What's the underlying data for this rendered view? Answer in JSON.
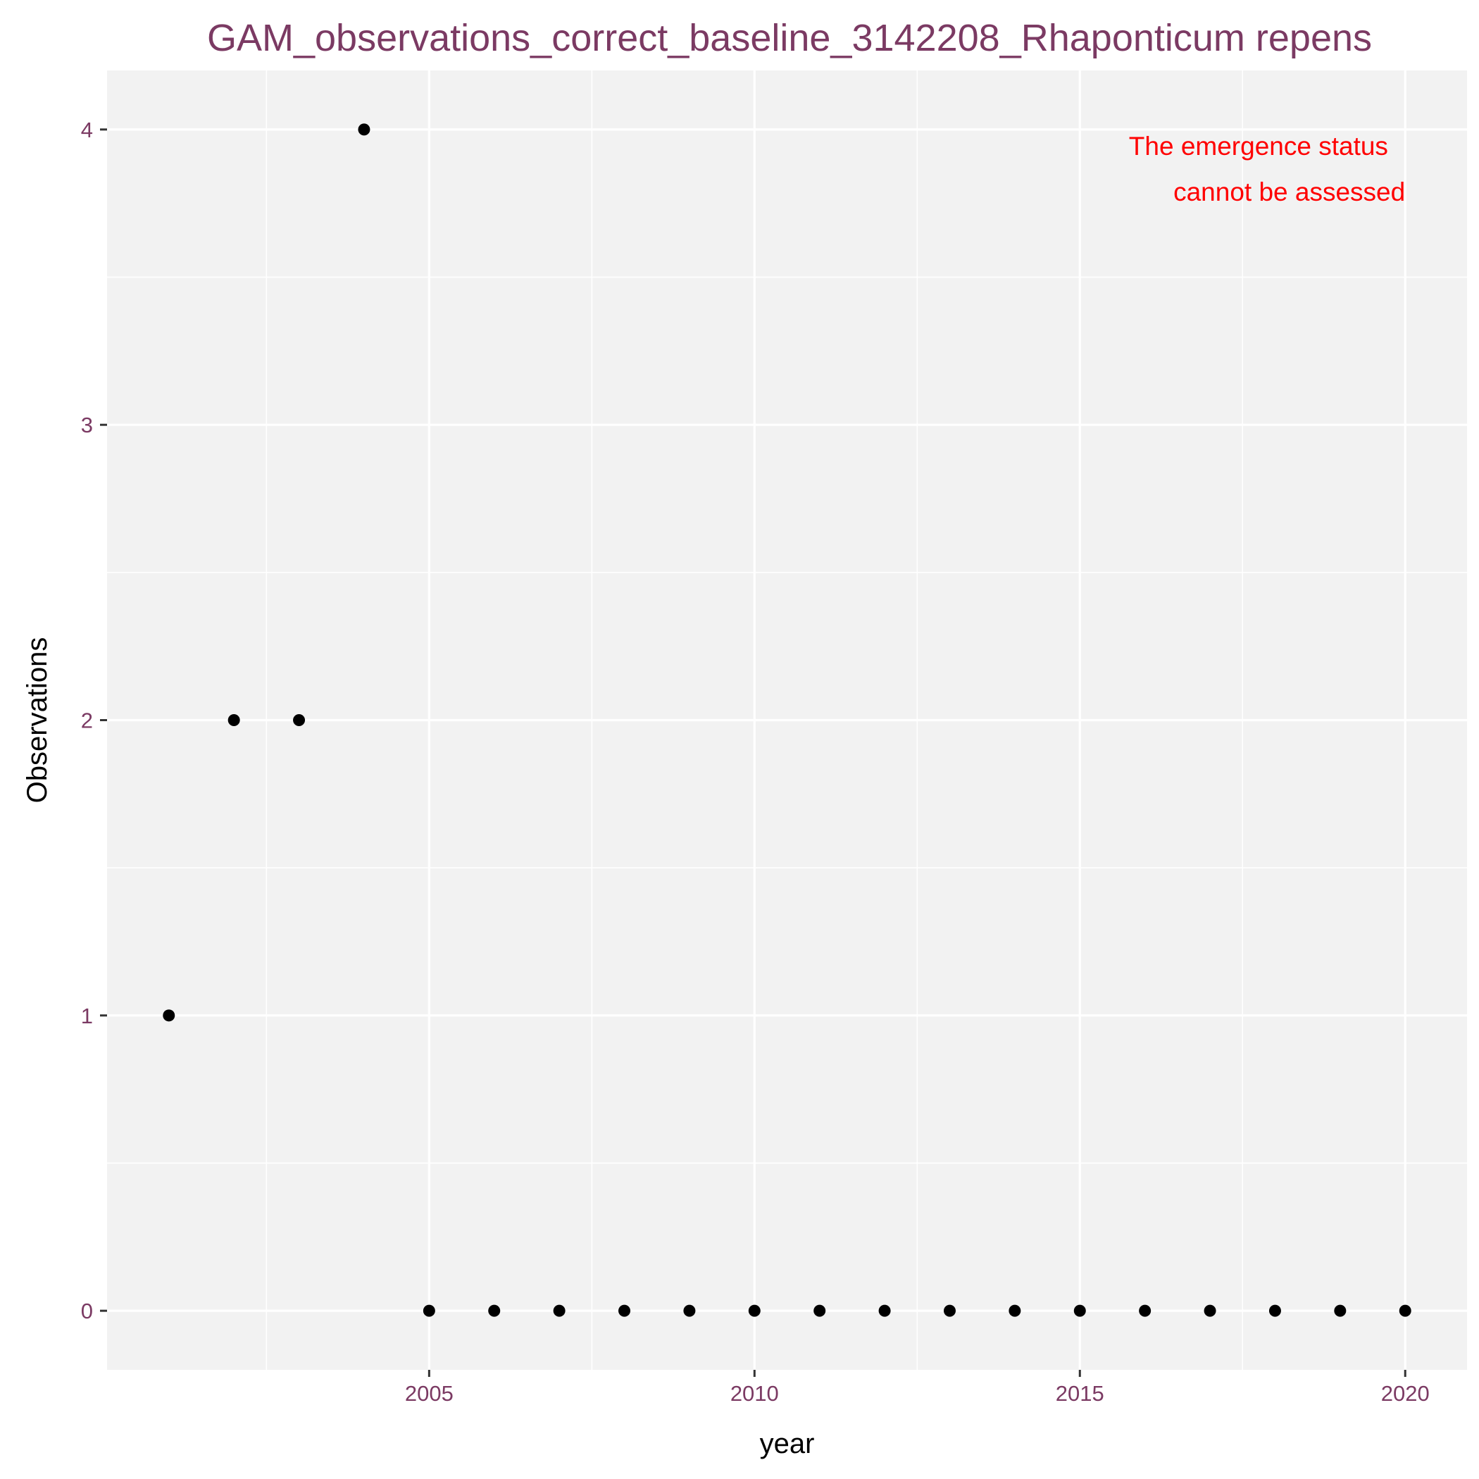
{
  "chart_data": {
    "type": "scatter",
    "title": "GAM_observations_correct_baseline_3142208_Rhaponticum repens",
    "xlabel": "year",
    "ylabel": "Observations",
    "xlim": [
      2000.05,
      2020.95
    ],
    "ylim": [
      -0.2,
      4.2
    ],
    "x_ticks": [
      2005,
      2010,
      2015,
      2020
    ],
    "x_minor": [
      2002.5,
      2007.5,
      2012.5,
      2017.5
    ],
    "y_ticks": [
      0,
      1,
      2,
      3,
      4
    ],
    "y_minor": [
      0.5,
      1.5,
      2.5,
      3.5
    ],
    "grid": true,
    "annotation": [
      "The emergence status",
      "cannot be assessed"
    ],
    "points": [
      {
        "x": 2001,
        "y": 1
      },
      {
        "x": 2002,
        "y": 2
      },
      {
        "x": 2003,
        "y": 2
      },
      {
        "x": 2004,
        "y": 4
      },
      {
        "x": 2005,
        "y": 0
      },
      {
        "x": 2006,
        "y": 0
      },
      {
        "x": 2007,
        "y": 0
      },
      {
        "x": 2008,
        "y": 0
      },
      {
        "x": 2009,
        "y": 0
      },
      {
        "x": 2010,
        "y": 0
      },
      {
        "x": 2011,
        "y": 0
      },
      {
        "x": 2012,
        "y": 0
      },
      {
        "x": 2013,
        "y": 0
      },
      {
        "x": 2014,
        "y": 0
      },
      {
        "x": 2015,
        "y": 0
      },
      {
        "x": 2016,
        "y": 0
      },
      {
        "x": 2017,
        "y": 0
      },
      {
        "x": 2018,
        "y": 0
      },
      {
        "x": 2019,
        "y": 0
      },
      {
        "x": 2020,
        "y": 0
      }
    ],
    "colors": {
      "panel": "#f2f2f2",
      "grid": "#ffffff",
      "point": "#000000",
      "title": "#7b3a63",
      "annotation": "#ff0000"
    }
  }
}
